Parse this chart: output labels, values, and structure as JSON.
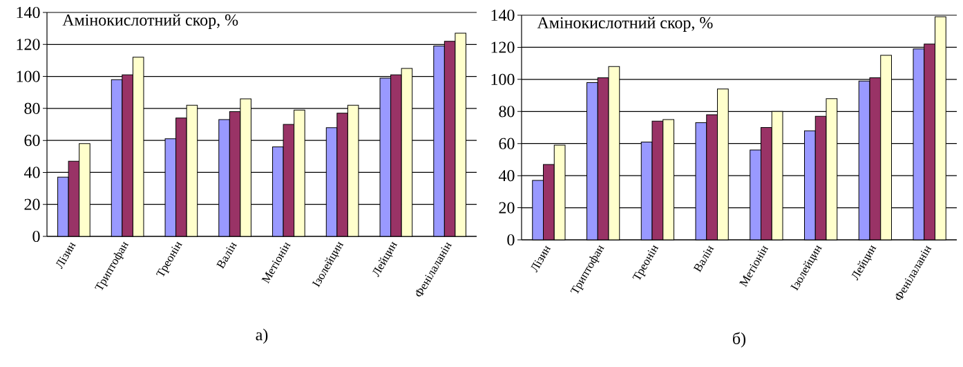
{
  "chart_data": [
    {
      "type": "bar",
      "title": "Амінокислотний скор, %",
      "categories": [
        "Лізин",
        "Триптофан",
        "Треонін",
        "Валін",
        "Метіонін",
        "Ізолейцин",
        "Лейцин",
        "Фенілаланін"
      ],
      "series": [
        {
          "color": "#9999ff",
          "values": [
            37,
            98,
            61,
            73,
            56,
            68,
            99,
            119
          ]
        },
        {
          "color": "#993366",
          "values": [
            47,
            101,
            74,
            78,
            70,
            77,
            101,
            122
          ]
        },
        {
          "color": "#ffffcc",
          "values": [
            58,
            112,
            82,
            86,
            79,
            82,
            105,
            127
          ]
        }
      ],
      "ylim": [
        0,
        140
      ],
      "yticks": [
        0,
        20,
        40,
        60,
        80,
        100,
        120,
        140
      ],
      "grid": "y",
      "annotations": [
        "а)"
      ]
    },
    {
      "type": "bar",
      "title": "Амінокислотний скор, %",
      "categories": [
        "Лізин",
        "Триптофан",
        "Треонін",
        "Валін",
        "Метіонін",
        "Ізолейцин",
        "Лейцин",
        "Фенілаланін"
      ],
      "series": [
        {
          "color": "#9999ff",
          "values": [
            37,
            98,
            61,
            73,
            56,
            68,
            99,
            119
          ]
        },
        {
          "color": "#993366",
          "values": [
            47,
            101,
            74,
            78,
            70,
            77,
            101,
            122
          ]
        },
        {
          "color": "#ffffcc",
          "values": [
            59,
            108,
            75,
            94,
            80,
            88,
            115,
            139
          ]
        }
      ],
      "ylim": [
        0,
        140
      ],
      "yticks": [
        0,
        20,
        40,
        60,
        80,
        100,
        120,
        140
      ],
      "grid": "y",
      "annotations": [
        "б)"
      ]
    }
  ]
}
